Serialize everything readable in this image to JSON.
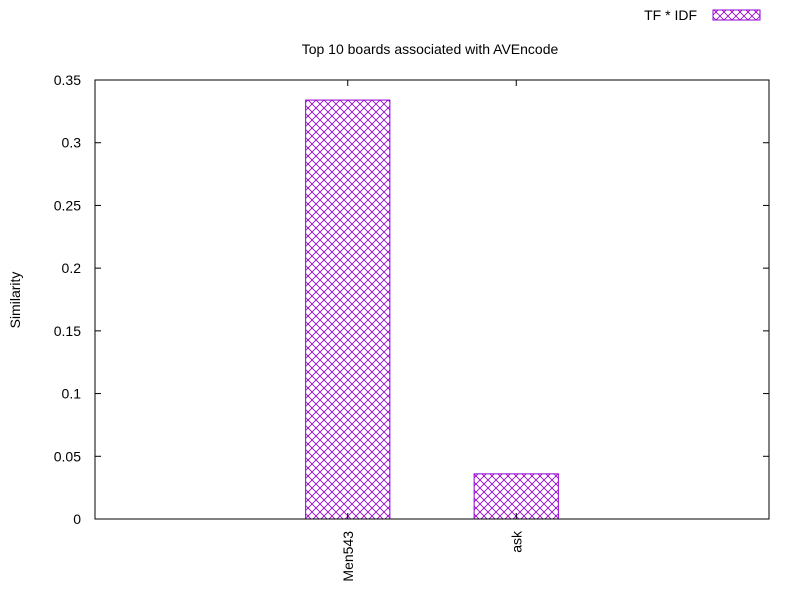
{
  "chart_data": {
    "type": "bar",
    "title": "Top 10 boards associated with AVEncode",
    "xlabel": "",
    "ylabel": "Similarity",
    "categories": [
      "Men543",
      "ask"
    ],
    "series": [
      {
        "name": "TF * IDF",
        "values": [
          0.334,
          0.036
        ]
      }
    ],
    "ylim": [
      0,
      0.35
    ],
    "yticks": [
      0,
      0.05,
      0.1,
      0.15,
      0.2,
      0.25,
      0.3,
      0.35
    ],
    "ytick_labels": [
      "0",
      "0.05",
      "0.1",
      "0.15",
      "0.2",
      "0.25",
      "0.3",
      "0.35"
    ],
    "grid": false,
    "legend_position": "top-right",
    "bar_color": "#9400d3",
    "bar_pattern": "crosshatch"
  }
}
